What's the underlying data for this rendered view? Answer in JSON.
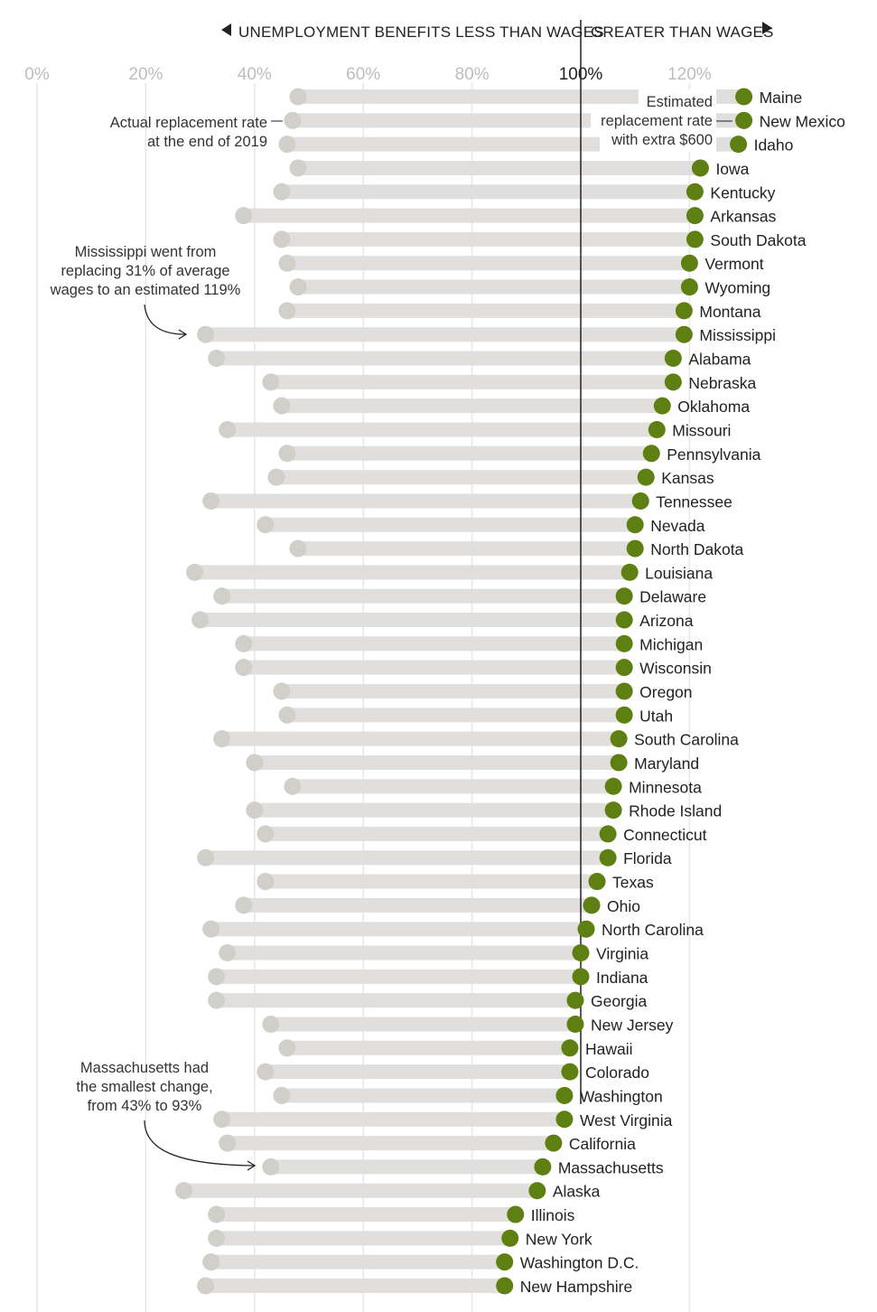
{
  "chart_data": {
    "type": "dot-range",
    "header": {
      "left": "UNEMPLOYMENT BENEFITS LESS THAN WAGES",
      "right": "GREATER THAN WAGES"
    },
    "x_ticks": [
      "0%",
      "20%",
      "40%",
      "60%",
      "80%",
      "100%",
      "120%"
    ],
    "x_tick_values": [
      0,
      20,
      40,
      60,
      80,
      100,
      120
    ],
    "xlim": [
      0,
      130
    ],
    "series": [
      {
        "name": "Actual replacement rate at the end of 2019",
        "key": "actual"
      },
      {
        "name": "Estimated replacement rate with extra $600",
        "key": "estimated"
      }
    ],
    "rows": [
      {
        "state": "Maine",
        "actual": 48,
        "estimated": 130
      },
      {
        "state": "New Mexico",
        "actual": 47,
        "estimated": 130
      },
      {
        "state": "Idaho",
        "actual": 46,
        "estimated": 129
      },
      {
        "state": "Iowa",
        "actual": 48,
        "estimated": 122
      },
      {
        "state": "Kentucky",
        "actual": 45,
        "estimated": 121
      },
      {
        "state": "Arkansas",
        "actual": 38,
        "estimated": 121
      },
      {
        "state": "South Dakota",
        "actual": 45,
        "estimated": 121
      },
      {
        "state": "Vermont",
        "actual": 46,
        "estimated": 120
      },
      {
        "state": "Wyoming",
        "actual": 48,
        "estimated": 120
      },
      {
        "state": "Montana",
        "actual": 46,
        "estimated": 119
      },
      {
        "state": "Mississippi",
        "actual": 31,
        "estimated": 119
      },
      {
        "state": "Alabama",
        "actual": 33,
        "estimated": 117
      },
      {
        "state": "Nebraska",
        "actual": 43,
        "estimated": 117
      },
      {
        "state": "Oklahoma",
        "actual": 45,
        "estimated": 115
      },
      {
        "state": "Missouri",
        "actual": 35,
        "estimated": 114
      },
      {
        "state": "Pennsylvania",
        "actual": 46,
        "estimated": 113
      },
      {
        "state": "Kansas",
        "actual": 44,
        "estimated": 112
      },
      {
        "state": "Tennessee",
        "actual": 32,
        "estimated": 111
      },
      {
        "state": "Nevada",
        "actual": 42,
        "estimated": 110
      },
      {
        "state": "North Dakota",
        "actual": 48,
        "estimated": 110
      },
      {
        "state": "Louisiana",
        "actual": 29,
        "estimated": 109
      },
      {
        "state": "Delaware",
        "actual": 34,
        "estimated": 108
      },
      {
        "state": "Arizona",
        "actual": 30,
        "estimated": 108
      },
      {
        "state": "Michigan",
        "actual": 38,
        "estimated": 108
      },
      {
        "state": "Wisconsin",
        "actual": 38,
        "estimated": 108
      },
      {
        "state": "Oregon",
        "actual": 45,
        "estimated": 108
      },
      {
        "state": "Utah",
        "actual": 46,
        "estimated": 108
      },
      {
        "state": "South Carolina",
        "actual": 34,
        "estimated": 107
      },
      {
        "state": "Maryland",
        "actual": 40,
        "estimated": 107
      },
      {
        "state": "Minnesota",
        "actual": 47,
        "estimated": 106
      },
      {
        "state": "Rhode Island",
        "actual": 40,
        "estimated": 106
      },
      {
        "state": "Connecticut",
        "actual": 42,
        "estimated": 105
      },
      {
        "state": "Florida",
        "actual": 31,
        "estimated": 105
      },
      {
        "state": "Texas",
        "actual": 42,
        "estimated": 103
      },
      {
        "state": "Ohio",
        "actual": 38,
        "estimated": 102
      },
      {
        "state": "North Carolina",
        "actual": 32,
        "estimated": 101
      },
      {
        "state": "Virginia",
        "actual": 35,
        "estimated": 100
      },
      {
        "state": "Indiana",
        "actual": 33,
        "estimated": 100
      },
      {
        "state": "Georgia",
        "actual": 33,
        "estimated": 99
      },
      {
        "state": "New Jersey",
        "actual": 43,
        "estimated": 99
      },
      {
        "state": "Hawaii",
        "actual": 46,
        "estimated": 98
      },
      {
        "state": "Colorado",
        "actual": 42,
        "estimated": 98
      },
      {
        "state": "Washington",
        "actual": 45,
        "estimated": 97
      },
      {
        "state": "West Virginia",
        "actual": 34,
        "estimated": 97
      },
      {
        "state": "California",
        "actual": 35,
        "estimated": 95
      },
      {
        "state": "Massachusetts",
        "actual": 43,
        "estimated": 93
      },
      {
        "state": "Alaska",
        "actual": 27,
        "estimated": 92
      },
      {
        "state": "Illinois",
        "actual": 33,
        "estimated": 88
      },
      {
        "state": "New York",
        "actual": 33,
        "estimated": 87
      },
      {
        "state": "Washington D.C.",
        "actual": 32,
        "estimated": 86
      },
      {
        "state": "New Hampshire",
        "actual": 31,
        "estimated": 86
      }
    ],
    "annotations": {
      "actual_rate": [
        "Actual replacement rate",
        "at the end of 2019"
      ],
      "estimated_rate": [
        "Estimated",
        "replacement rate",
        "with extra $600"
      ],
      "mississippi": [
        "Mississippi went from",
        "replacing 31% of average",
        "wages to an estimated 119%"
      ],
      "massachusetts": [
        "Massachusetts had",
        "the smallest change,",
        "from 43% to 93%"
      ]
    },
    "colors": {
      "estimated": "#5e7f11",
      "actual": "#d1cfc9",
      "bar": "#e0dfdd",
      "reference_line": "#222222"
    }
  }
}
